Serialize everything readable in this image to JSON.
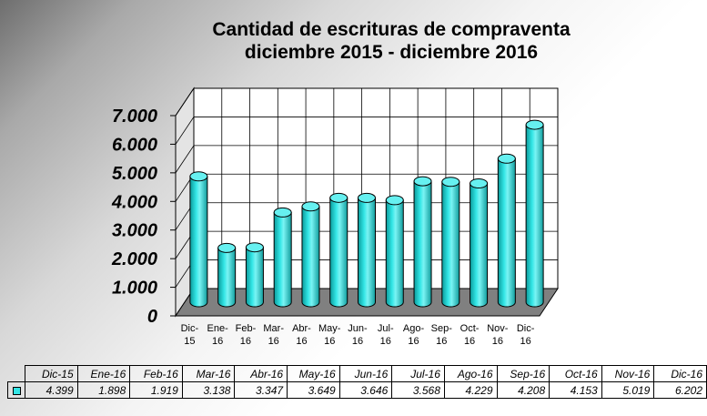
{
  "chart_data": {
    "type": "bar",
    "title": [
      "Cantidad de escrituras de compraventa",
      "diciembre 2015 - diciembre 2016"
    ],
    "categories": [
      "Dic-15",
      "Ene-16",
      "Feb-16",
      "Mar-16",
      "Abr-16",
      "May-16",
      "Jun-16",
      "Jul-16",
      "Ago-16",
      "Sep-16",
      "Oct-16",
      "Nov-16",
      "Dic-16"
    ],
    "category_labels": [
      [
        "Dic-",
        "15"
      ],
      [
        "Ene-",
        "16"
      ],
      [
        "Feb-",
        "16"
      ],
      [
        "Mar-",
        "16"
      ],
      [
        "Abr-",
        "16"
      ],
      [
        "May-",
        "16"
      ],
      [
        "Jun-",
        "16"
      ],
      [
        "Jul-",
        "16"
      ],
      [
        "Ago-",
        "16"
      ],
      [
        "Sep-",
        "16"
      ],
      [
        "Oct-",
        "16"
      ],
      [
        "Nov-",
        "16"
      ],
      [
        "Dic-",
        "16"
      ]
    ],
    "values": [
      4399,
      1898,
      1919,
      3138,
      3347,
      3649,
      3646,
      3568,
      4229,
      4208,
      4153,
      5019,
      6202
    ],
    "value_labels": [
      "4.399",
      "1.898",
      "1.919",
      "3.138",
      "3.347",
      "3.649",
      "3.646",
      "3.568",
      "4.229",
      "4.208",
      "4.153",
      "5.019",
      "6.202"
    ],
    "ylim": [
      0,
      7000
    ],
    "yticks": [
      0,
      1000,
      2000,
      3000,
      4000,
      5000,
      6000,
      7000
    ],
    "ytick_labels": [
      "0",
      "1.000",
      "2.000",
      "3.000",
      "4.000",
      "5.000",
      "6.000",
      "7.000"
    ],
    "grid": true,
    "style": "3d-cylinder",
    "bar_color": "#33e6e6",
    "floor_color": "#808080",
    "wall_color": "#ffffff",
    "data_table": true
  }
}
